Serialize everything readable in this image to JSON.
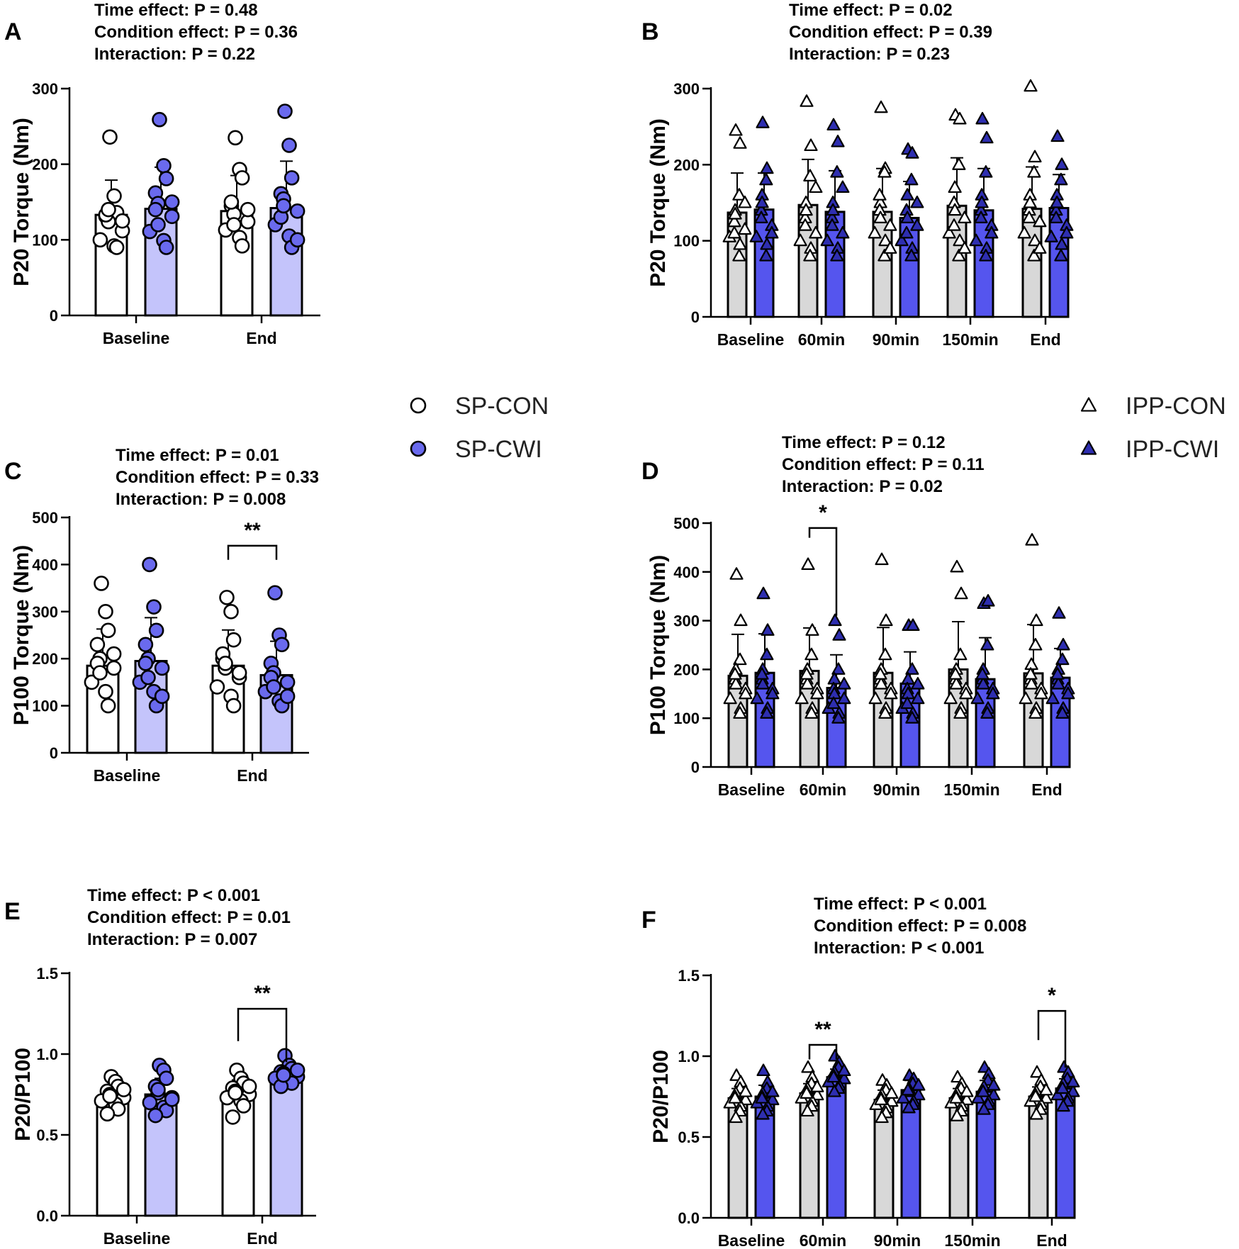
{
  "colors": {
    "sp_con_bar": "#ffffff",
    "sp_cwi_bar": "#c4c4fb",
    "sp_cwi_dot": "#6a6aee",
    "ipp_con_bar": "#d8d8d8",
    "ipp_cwi_bar": "#5555ee",
    "ipp_cwi_marker": "#2e2eb0",
    "ipp_con_marker": "#ffffff"
  },
  "legends": [
    {
      "id": "sp",
      "items": [
        {
          "label": "SP-CON",
          "marker": "circle",
          "fill": "#ffffff"
        },
        {
          "label": "SP-CWI",
          "marker": "circle",
          "fill": "#6a6aee"
        }
      ]
    },
    {
      "id": "ipp",
      "items": [
        {
          "label": "IPP-CON",
          "marker": "triangle",
          "fill": "#ffffff"
        },
        {
          "label": "IPP-CWI",
          "marker": "triangle",
          "fill": "#2e2eb0"
        }
      ]
    }
  ],
  "chart_data": [
    {
      "panel": "A",
      "type": "bar",
      "design": "SP",
      "stats": [
        "Time effect: P = 0.48",
        "Condition effect: P = 0.36",
        "Interaction: P = 0.22"
      ],
      "ylabel": "P20 Torque (Nm)",
      "ylim": [
        0,
        300
      ],
      "yticks": [
        0,
        100,
        200,
        300
      ],
      "ytick_labels": [
        "0",
        "100",
        "200",
        "300"
      ],
      "categories": [
        "Baseline",
        "End"
      ],
      "series": [
        {
          "name": "SP-CON",
          "values": [
            133,
            138
          ],
          "sd": [
            46,
            47
          ],
          "points": [
            [
              236,
              158,
              136,
              131,
              124,
              112,
              100,
              92,
              90,
              133,
              140,
              125
            ],
            [
              235,
              193,
              182,
              145,
              134,
              124,
              113,
              103,
              92,
              150,
              120,
              140
            ]
          ]
        },
        {
          "name": "SP-CWI",
          "values": [
            141,
            142
          ],
          "sd": [
            55,
            62
          ],
          "points": [
            [
              259,
              198,
              181,
              162,
              148,
              131,
              111,
              99,
              90,
              140,
              120,
              150
            ],
            [
              270,
              225,
              182,
              161,
              154,
              138,
              120,
              105,
              90,
              130,
              145,
              100
            ]
          ]
        }
      ],
      "significance": []
    },
    {
      "panel": "B",
      "type": "bar",
      "design": "IPP",
      "stats": [
        "Time effect: P = 0.02",
        "Condition effect: P = 0.39",
        "Interaction: P = 0.23"
      ],
      "ylabel": "P20 Torque (Nm)",
      "ylim": [
        0,
        300
      ],
      "yticks": [
        0,
        100,
        200,
        300
      ],
      "ytick_labels": [
        "0",
        "100",
        "200",
        "300"
      ],
      "categories": [
        "Baseline",
        "60min",
        "90min",
        "150min",
        "End"
      ],
      "series": [
        {
          "name": "IPP-CON",
          "values": [
            137,
            147,
            138,
            146,
            142
          ],
          "sd": [
            52,
            60,
            57,
            63,
            55
          ],
          "points": [
            [
              245,
              228,
              160,
              140,
              125,
              115,
              105,
              95,
              80,
              135,
              110,
              150
            ],
            [
              283,
              225,
              185,
              150,
              130,
              110,
              100,
              90,
              80,
              140,
              120,
              170
            ],
            [
              275,
              195,
              190,
              150,
              140,
              120,
              110,
              100,
              80,
              130,
              160,
              90
            ],
            [
              265,
              260,
              200,
              170,
              150,
              130,
              110,
              100,
              80,
              140,
              120,
              90
            ],
            [
              303,
              210,
              190,
              160,
              140,
              125,
              110,
              100,
              80,
              150,
              130,
              90
            ]
          ]
        },
        {
          "name": "IPP-CWI",
          "values": [
            141,
            138,
            130,
            140,
            143
          ],
          "sd": [
            48,
            54,
            48,
            55,
            44
          ],
          "points": [
            [
              255,
              195,
              180,
              160,
              140,
              120,
              105,
              95,
              80,
              150,
              130,
              110
            ],
            [
              252,
              230,
              190,
              150,
              130,
              110,
              100,
              90,
              80,
              140,
              120,
              170
            ],
            [
              220,
              215,
              180,
              160,
              140,
              120,
              100,
              90,
              80,
              130,
              110,
              150
            ],
            [
              260,
              235,
              190,
              160,
              140,
              120,
              100,
              90,
              80,
              150,
              130,
              110
            ],
            [
              237,
              200,
              180,
              160,
              140,
              120,
              105,
              95,
              80,
              150,
              130,
              110
            ]
          ]
        }
      ],
      "significance": []
    },
    {
      "panel": "C",
      "type": "bar",
      "design": "SP",
      "stats": [
        "Time effect: P = 0.01",
        "Condition effect: P = 0.33",
        "Interaction: P = 0.008"
      ],
      "ylabel": "P100 Torque (Nm)",
      "ylim": [
        0,
        500
      ],
      "yticks": [
        0,
        100,
        200,
        300,
        400,
        500
      ],
      "ytick_labels": [
        "0",
        "100",
        "200",
        "300",
        "400",
        "500"
      ],
      "categories": [
        "Baseline",
        "End"
      ],
      "series": [
        {
          "name": "SP-CON",
          "values": [
            185,
            185
          ],
          "sd": [
            78,
            76
          ],
          "points": [
            [
              360,
              300,
              260,
              230,
              200,
              180,
              150,
              130,
              100,
              190,
              170,
              210
            ],
            [
              330,
              300,
              240,
              200,
              180,
              160,
              140,
              120,
              100,
              210,
              190,
              170
            ]
          ]
        },
        {
          "name": "SP-CWI",
          "values": [
            195,
            165
          ],
          "sd": [
            92,
            72
          ],
          "points": [
            [
              400,
              310,
              260,
              230,
              200,
              180,
              150,
              130,
              100,
              190,
              160,
              120
            ],
            [
              340,
              250,
              230,
              190,
              170,
              150,
              130,
              110,
              100,
              160,
              140,
              120
            ]
          ]
        }
      ],
      "significance": [
        {
          "category_index": 1,
          "label": "**",
          "y": 440
        }
      ]
    },
    {
      "panel": "D",
      "type": "bar",
      "design": "IPP",
      "stats": [
        "Time effect: P = 0.12",
        "Condition effect: P = 0.11",
        "Interaction: P = 0.02"
      ],
      "ylabel": "P100 Torque (Nm)",
      "ylim": [
        0,
        500
      ],
      "yticks": [
        0,
        100,
        200,
        300,
        400,
        500
      ],
      "ytick_labels": [
        "0",
        "100",
        "200",
        "300",
        "400",
        "500"
      ],
      "categories": [
        "Baseline",
        "60min",
        "90min",
        "150min",
        "End"
      ],
      "series": [
        {
          "name": "IPP-CON",
          "values": [
            187,
            197,
            193,
            200,
            192
          ],
          "sd": [
            85,
            88,
            93,
            98,
            100
          ],
          "points": [
            [
              395,
              300,
              220,
              200,
              180,
              160,
              140,
              120,
              110,
              170,
              190,
              150
            ],
            [
              415,
              280,
              230,
              200,
              180,
              160,
              140,
              120,
              110,
              170,
              190,
              150
            ],
            [
              425,
              300,
              230,
              200,
              180,
              160,
              140,
              120,
              110,
              170,
              190,
              150
            ],
            [
              410,
              355,
              230,
              200,
              180,
              160,
              140,
              120,
              110,
              170,
              190,
              150
            ],
            [
              465,
              300,
              250,
              210,
              180,
              160,
              140,
              120,
              110,
              170,
              190,
              150
            ]
          ]
        },
        {
          "name": "IPP-CWI",
          "values": [
            193,
            162,
            171,
            180,
            183
          ],
          "sd": [
            80,
            68,
            65,
            85,
            60
          ],
          "points": [
            [
              355,
              280,
              230,
              200,
              180,
              160,
              140,
              120,
              110,
              170,
              190,
              150
            ],
            [
              300,
              270,
              200,
              180,
              160,
              140,
              120,
              110,
              100,
              150,
              130,
              170
            ],
            [
              290,
              290,
              200,
              180,
              160,
              140,
              120,
              110,
              100,
              150,
              130,
              170
            ],
            [
              335,
              340,
              250,
              200,
              180,
              160,
              140,
              120,
              110,
              170,
              190,
              150
            ],
            [
              315,
              250,
              220,
              200,
              180,
              160,
              140,
              120,
              110,
              170,
              190,
              150
            ]
          ]
        }
      ],
      "significance": [
        {
          "category_index": 1,
          "label": "*",
          "y": 490,
          "left_drop": 470,
          "right_drop": 310
        }
      ]
    },
    {
      "panel": "E",
      "type": "bar",
      "design": "SP",
      "stats": [
        "Time effect: P < 0.001",
        "Condition effect: P = 0.01",
        "Interaction: P = 0.007"
      ],
      "ylabel": "P20/P100",
      "ylim": [
        0,
        1.5
      ],
      "yticks": [
        0,
        0.5,
        1.0,
        1.5
      ],
      "ytick_labels": [
        "0.0",
        "0.5",
        "1.0",
        "1.5"
      ],
      "categories": [
        "Baseline",
        "End"
      ],
      "series": [
        {
          "name": "SP-CON",
          "values": [
            0.73,
            0.76
          ],
          "sd": [
            0.07,
            0.08
          ],
          "points": [
            [
              0.86,
              0.83,
              0.8,
              0.77,
              0.75,
              0.73,
              0.71,
              0.69,
              0.66,
              0.63,
              0.74,
              0.78
            ],
            [
              0.9,
              0.85,
              0.82,
              0.79,
              0.77,
              0.75,
              0.73,
              0.71,
              0.68,
              0.61,
              0.76,
              0.8
            ]
          ]
        },
        {
          "name": "SP-CWI",
          "values": [
            0.75,
            0.87
          ],
          "sd": [
            0.1,
            0.05
          ],
          "points": [
            [
              0.93,
              0.9,
              0.85,
              0.8,
              0.76,
              0.73,
              0.7,
              0.67,
              0.65,
              0.62,
              0.78,
              0.72
            ],
            [
              0.99,
              0.93,
              0.91,
              0.89,
              0.88,
              0.86,
              0.85,
              0.84,
              0.82,
              0.8,
              0.87,
              0.9
            ]
          ]
        }
      ],
      "significance": [
        {
          "category_index": 1,
          "label": "**",
          "y": 1.28,
          "left_drop": 1.08,
          "right_drop": 0.95
        }
      ]
    },
    {
      "panel": "F",
      "type": "bar",
      "design": "IPP",
      "stats": [
        "Time effect: P < 0.001",
        "Condition effect: P = 0.008",
        "Interaction: P < 0.001"
      ],
      "ylabel": "P20/P100",
      "ylim": [
        0,
        1.5
      ],
      "yticks": [
        0,
        0.5,
        1.0,
        1.5
      ],
      "ytick_labels": [
        "0.0",
        "0.5",
        "1.0",
        "1.5"
      ],
      "categories": [
        "Baseline",
        "60min",
        "90min",
        "150min",
        "End"
      ],
      "series": [
        {
          "name": "IPP-CON",
          "values": [
            0.74,
            0.77,
            0.73,
            0.74,
            0.75
          ],
          "sd": [
            0.06,
            0.06,
            0.06,
            0.06,
            0.06
          ],
          "points": [
            [
              0.88,
              0.84,
              0.8,
              0.77,
              0.75,
              0.73,
              0.71,
              0.69,
              0.66,
              0.62,
              0.74,
              0.78
            ],
            [
              0.93,
              0.87,
              0.83,
              0.8,
              0.78,
              0.76,
              0.74,
              0.72,
              0.69,
              0.66,
              0.77,
              0.81
            ],
            [
              0.85,
              0.82,
              0.79,
              0.76,
              0.74,
              0.72,
              0.7,
              0.68,
              0.65,
              0.62,
              0.73,
              0.77
            ],
            [
              0.87,
              0.83,
              0.8,
              0.77,
              0.75,
              0.73,
              0.71,
              0.69,
              0.66,
              0.63,
              0.74,
              0.78
            ],
            [
              0.9,
              0.85,
              0.81,
              0.78,
              0.76,
              0.74,
              0.72,
              0.7,
              0.67,
              0.64,
              0.75,
              0.79
            ]
          ]
        },
        {
          "name": "IPP-CWI",
          "values": [
            0.75,
            0.87,
            0.79,
            0.78,
            0.8
          ],
          "sd": [
            0.07,
            0.05,
            0.06,
            0.07,
            0.06
          ],
          "points": [
            [
              0.91,
              0.84,
              0.8,
              0.77,
              0.75,
              0.73,
              0.71,
              0.69,
              0.66,
              0.64,
              0.74,
              0.78
            ],
            [
              1.0,
              0.96,
              0.93,
              0.9,
              0.88,
              0.86,
              0.84,
              0.82,
              0.8,
              0.78,
              0.87,
              0.91
            ],
            [
              0.88,
              0.86,
              0.83,
              0.8,
              0.78,
              0.76,
              0.74,
              0.72,
              0.7,
              0.68,
              0.79,
              0.82
            ],
            [
              0.93,
              0.89,
              0.85,
              0.81,
              0.78,
              0.76,
              0.74,
              0.72,
              0.7,
              0.67,
              0.78,
              0.82
            ],
            [
              0.93,
              0.9,
              0.86,
              0.83,
              0.8,
              0.78,
              0.76,
              0.74,
              0.72,
              0.69,
              0.8,
              0.84
            ]
          ]
        }
      ],
      "significance": [
        {
          "category_index": 1,
          "label": "**",
          "y": 1.07
        },
        {
          "category_index": 4,
          "label": "*",
          "y": 1.28,
          "left_drop": 1.1,
          "right_drop": 0.93
        }
      ]
    }
  ]
}
